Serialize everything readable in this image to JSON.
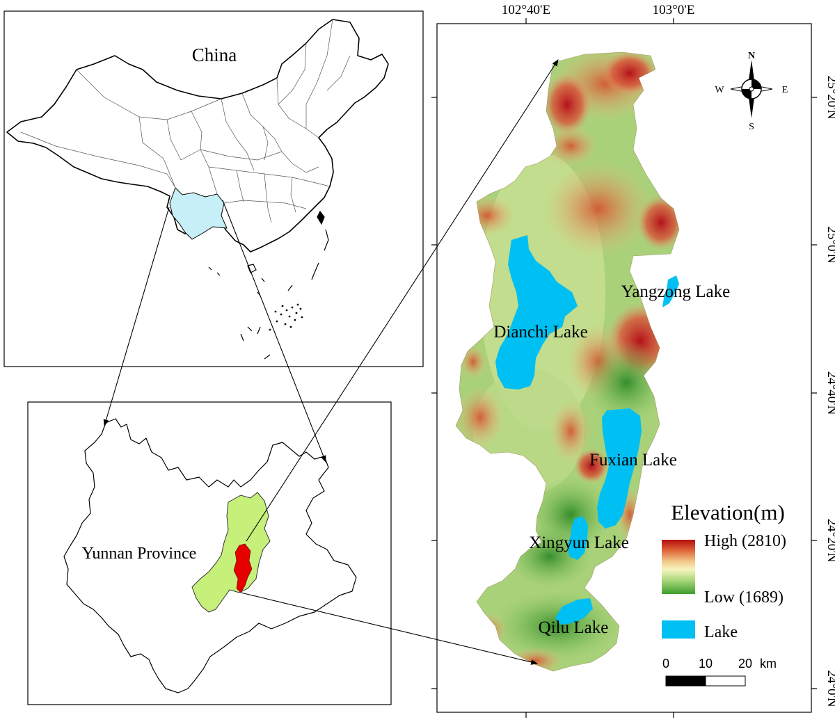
{
  "china_panel": {
    "title": "China",
    "highlight_color": "#c7eff7"
  },
  "yunnan_panel": {
    "label": "Yunnan Province",
    "study_area_color": "#c6f07a",
    "basin_color": "#e60000"
  },
  "main_map": {
    "top_ticks": [
      "102°40'E",
      "103°0'E"
    ],
    "right_ticks": [
      "25°20'N",
      "25°0'N",
      "24°40'N",
      "24°20'N",
      "24°0'N"
    ],
    "lakes": [
      "Dianchi Lake",
      "Yangzong Lake",
      "Fuxian Lake",
      "Xingyun Lake",
      "Qilu Lake"
    ],
    "lake_color": "#00bff2"
  },
  "compass": {
    "n": "N",
    "s": "S",
    "e": "E",
    "w": "W"
  },
  "legend": {
    "title": "Elevation(m)",
    "high": "High (2810)",
    "low": "Low (1689)",
    "lake": "Lake",
    "ramp": [
      "#b40e0e",
      "#e0663a",
      "#f2c98a",
      "#f7f4c0",
      "#a8d77a",
      "#3f9d2e"
    ]
  },
  "scale_bar": {
    "ticks": [
      "0",
      "10",
      "20"
    ],
    "unit": "km"
  }
}
